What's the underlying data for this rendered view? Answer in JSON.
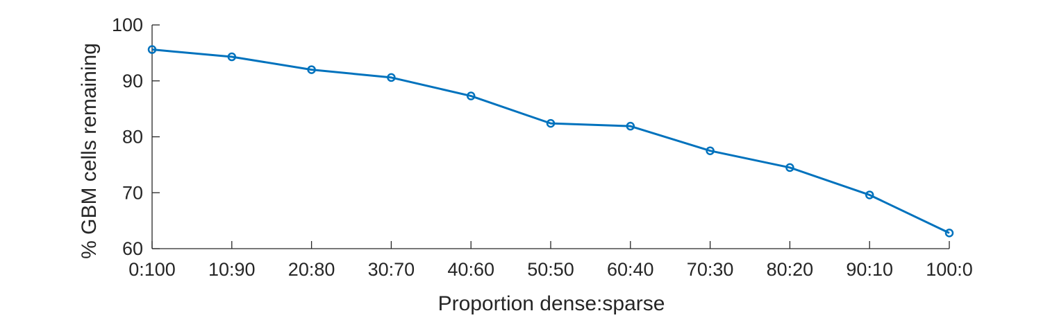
{
  "chart_data": {
    "type": "line",
    "categories": [
      "0:100",
      "10:90",
      "20:80",
      "30:70",
      "40:60",
      "50:50",
      "60:40",
      "70:30",
      "80:20",
      "90:10",
      "100:0"
    ],
    "series": [
      {
        "values": [
          95.6,
          94.3,
          92.0,
          90.6,
          87.3,
          82.4,
          81.9,
          77.5,
          74.5,
          69.6,
          62.8
        ]
      }
    ],
    "xlabel": "Proportion dense:sparse",
    "ylabel": "% GBM cells remaining",
    "ylim": [
      60,
      100
    ],
    "yticks": [
      60,
      70,
      80,
      90,
      100
    ],
    "grid": false,
    "box": "left-bottom",
    "colors": {
      "line": "#0072BD",
      "axis": "#262626"
    }
  }
}
